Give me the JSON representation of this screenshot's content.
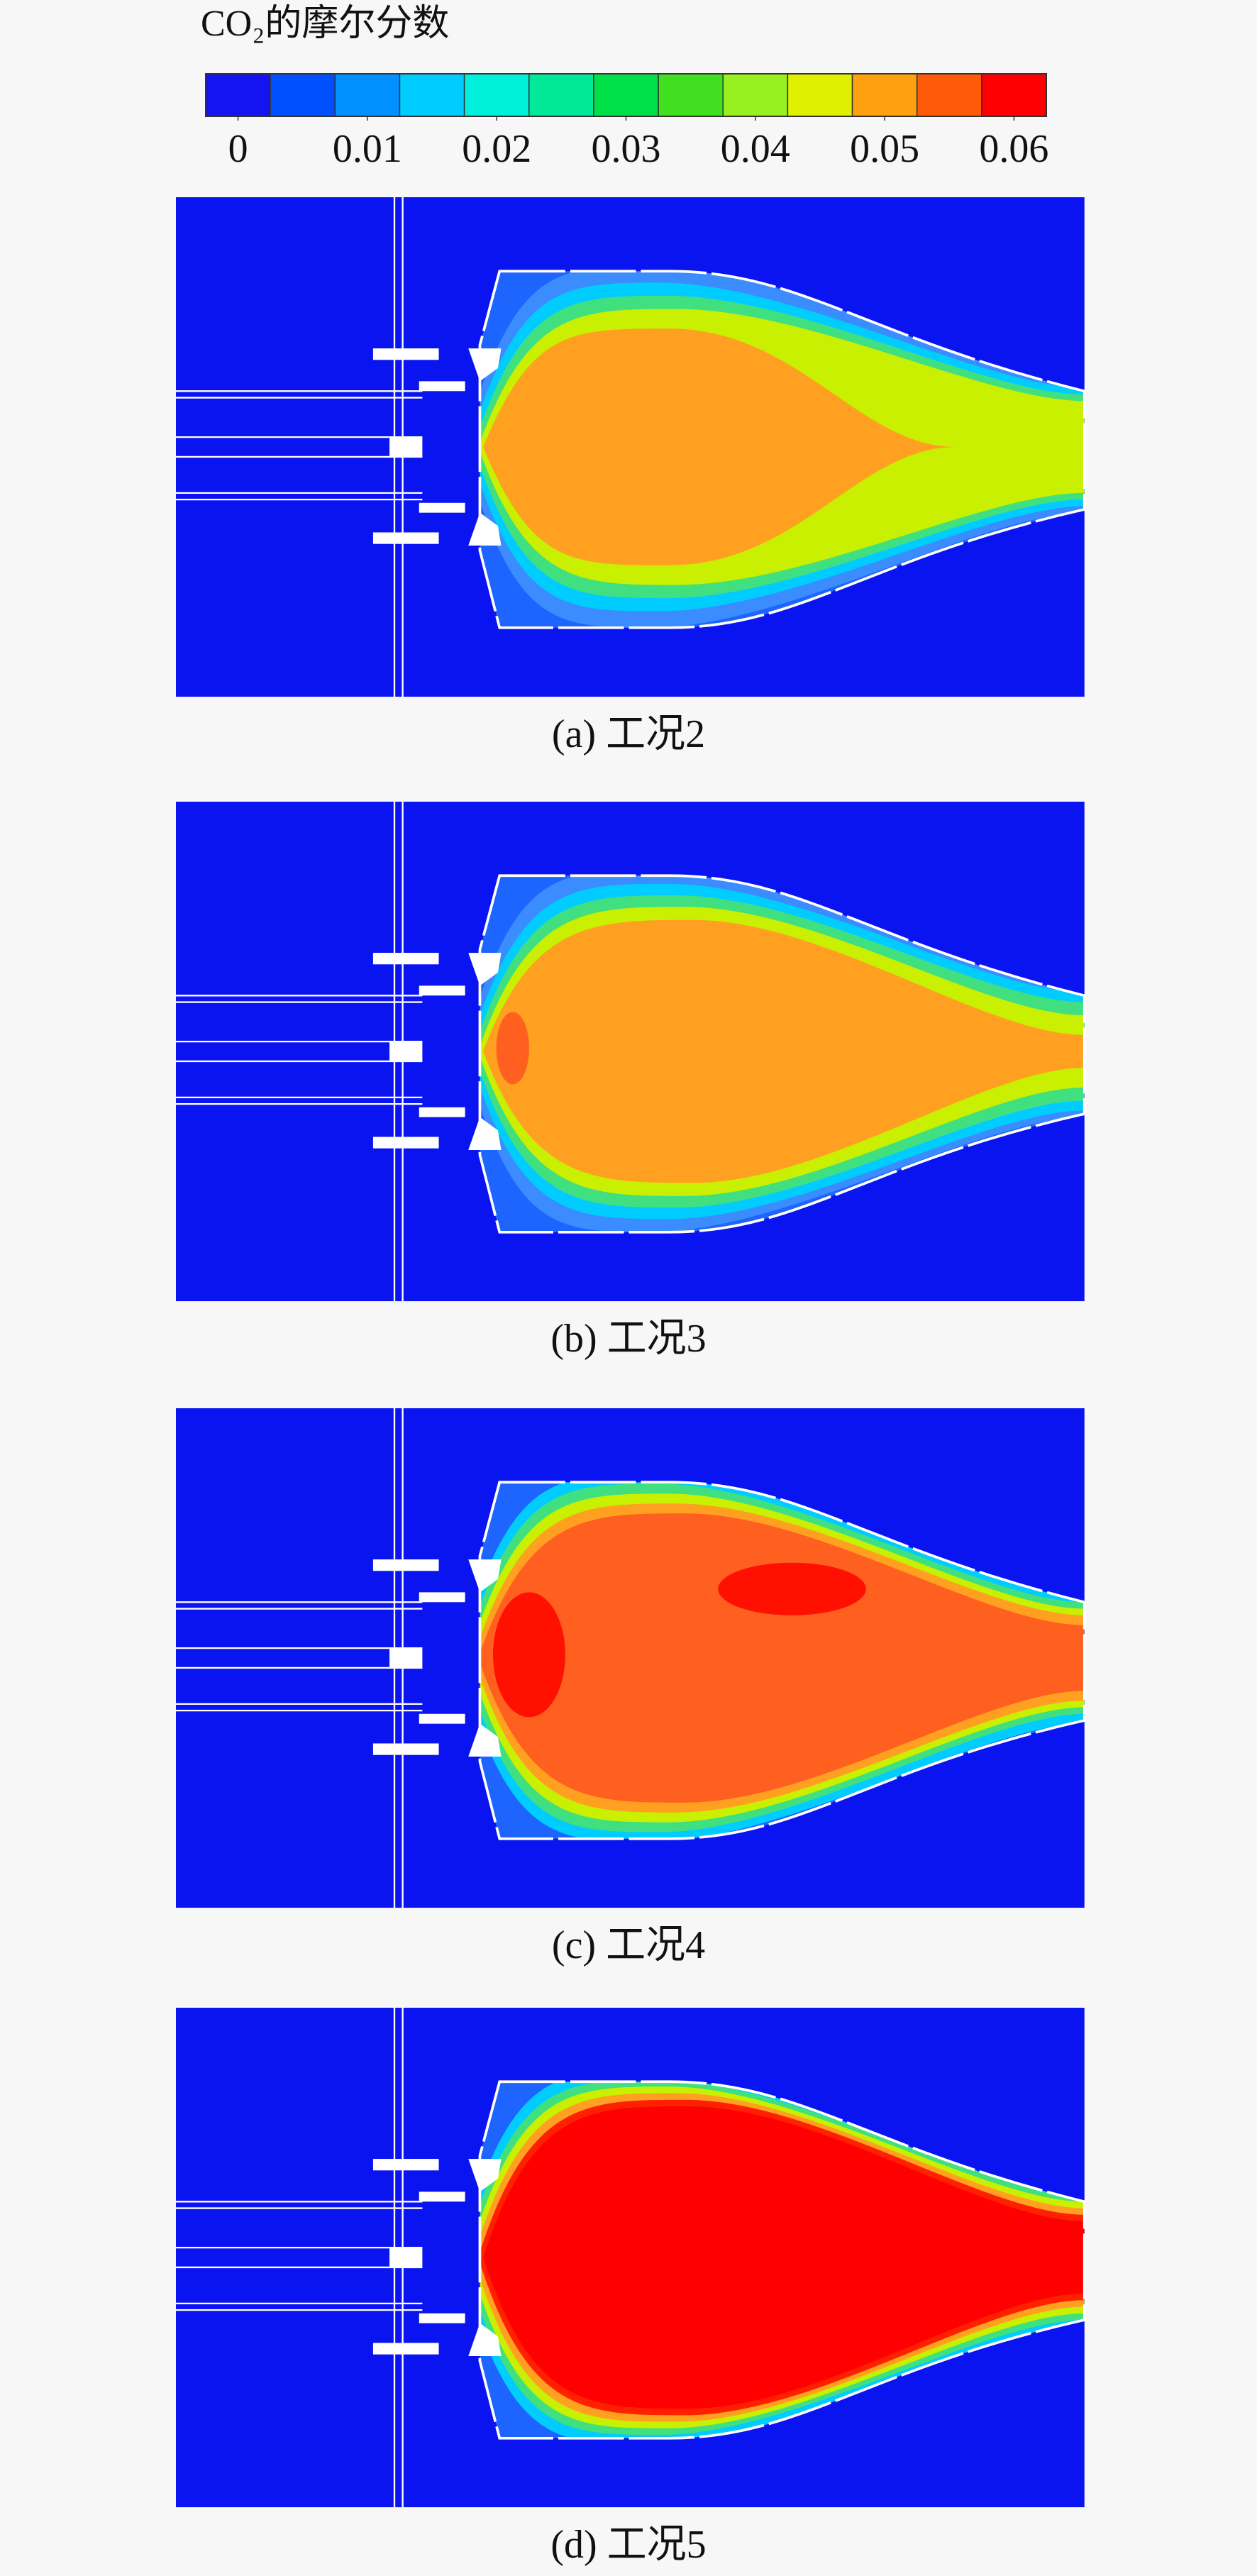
{
  "chart_data": {
    "type": "contour",
    "colorbar": {
      "title": "CO₂的摩尔分数",
      "colors": [
        "#1414f0",
        "#0050ff",
        "#0090ff",
        "#00ccff",
        "#00f0dc",
        "#00e898",
        "#00e048",
        "#40e020",
        "#98f020",
        "#e0f000",
        "#ffa010",
        "#ff5a08",
        "#ff0000"
      ],
      "lim": [
        -0.0025,
        0.0625
      ],
      "ticks": [
        0,
        0.01,
        0.02,
        0.03,
        0.04,
        0.05,
        0.06
      ]
    },
    "panels": [
      {
        "caption": "(a) 工况2"
      },
      {
        "caption": "(b) 工况3"
      },
      {
        "caption": "(c) 工况4"
      },
      {
        "caption": "(d) 工况5"
      }
    ]
  }
}
